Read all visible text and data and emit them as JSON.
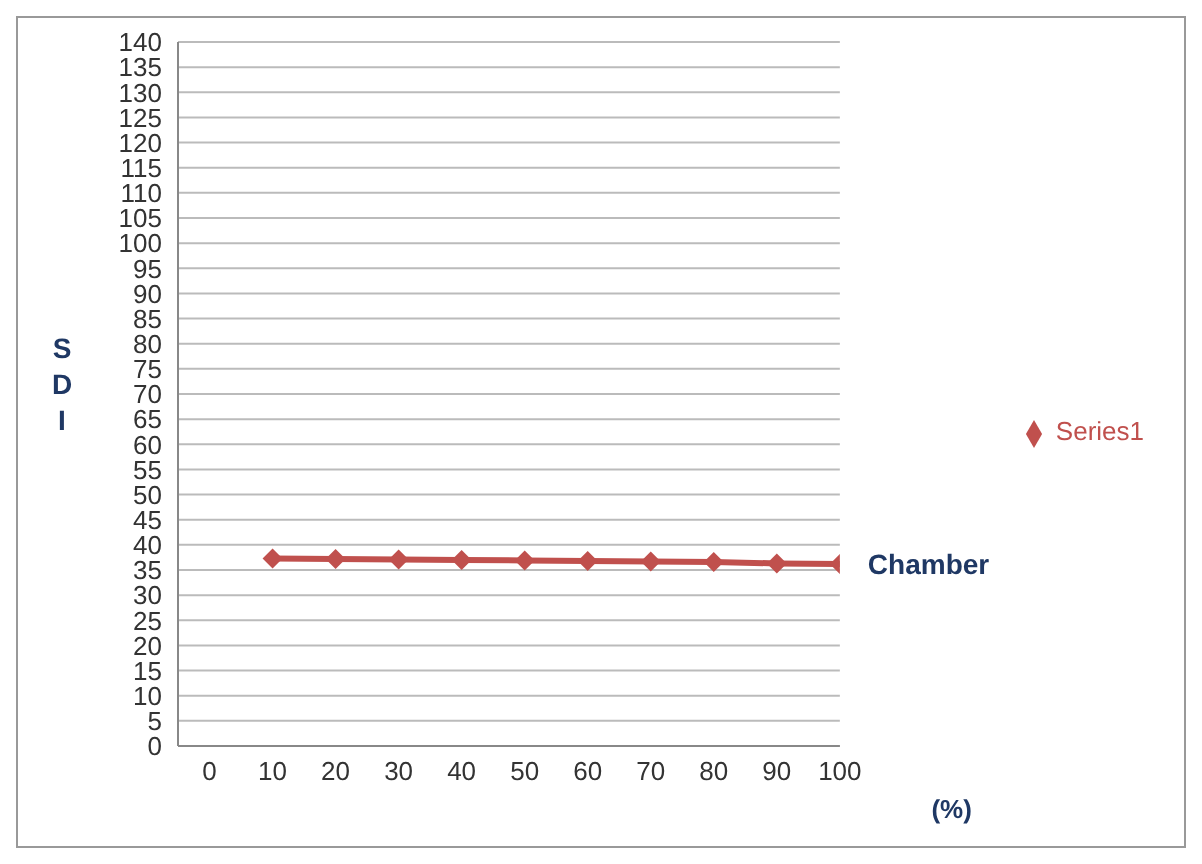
{
  "chart_data": {
    "type": "line",
    "xlabel": "(%)",
    "ylabel": "SDI",
    "x": [
      10,
      20,
      30,
      40,
      50,
      60,
      70,
      80,
      90,
      100
    ],
    "series": [
      {
        "name": "Series1",
        "color": "#c0504d",
        "values": [
          37.3,
          37.2,
          37.1,
          37.0,
          36.9,
          36.8,
          36.7,
          36.6,
          36.3,
          36.2
        ]
      }
    ],
    "xlim": [
      -5,
      100
    ],
    "xticks": [
      0,
      10,
      20,
      30,
      40,
      50,
      60,
      70,
      80,
      90,
      100
    ],
    "ylim": [
      0,
      140
    ],
    "yticks": [
      0,
      5,
      10,
      15,
      20,
      25,
      30,
      35,
      40,
      45,
      50,
      55,
      60,
      65,
      70,
      75,
      80,
      85,
      90,
      95,
      100,
      105,
      110,
      115,
      120,
      125,
      130,
      135,
      140
    ],
    "grid": "y",
    "legend": "right",
    "marker": "diamond",
    "line_style": "solid",
    "annotations": [
      {
        "text": "Chamber",
        "x": 100,
        "y": 36.2
      }
    ]
  }
}
